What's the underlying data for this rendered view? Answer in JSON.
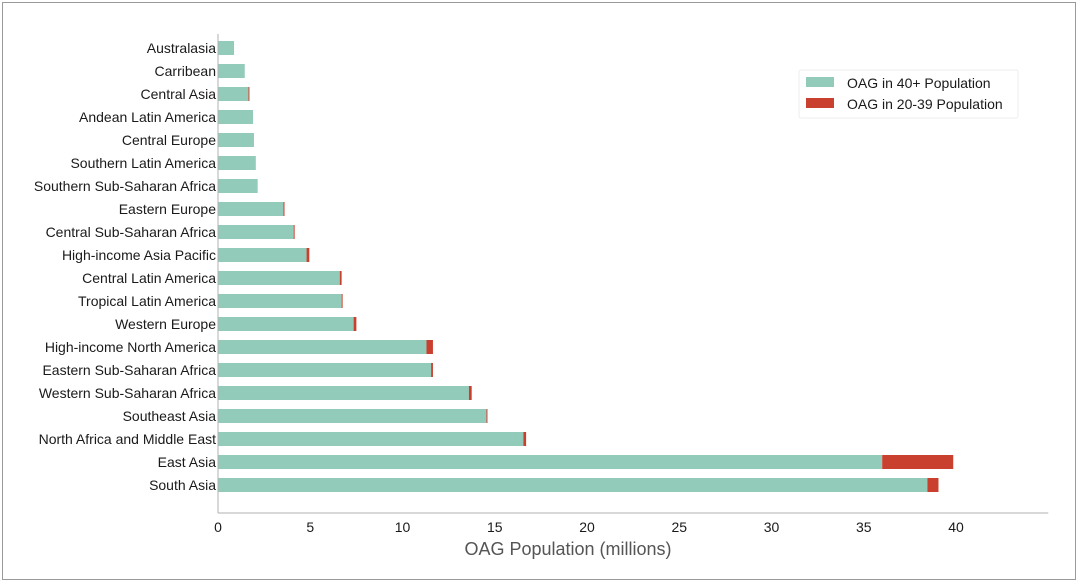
{
  "chart_data": {
    "type": "bar",
    "orientation": "horizontal",
    "stacked": true,
    "title": "",
    "xlabel": "OAG Population (millions)",
    "ylabel": "",
    "xlim": [
      0,
      45
    ],
    "xticks": [
      0,
      5,
      10,
      15,
      20,
      25,
      30,
      35,
      40
    ],
    "grid": false,
    "legend_position": "top-right",
    "categories": [
      "Australasia",
      "Carribean",
      "Central Asia",
      "Andean Latin America",
      "Central Europe",
      "Southern Latin America",
      "Southern Sub-Saharan Africa",
      "Eastern Europe",
      "Central Sub-Saharan Africa",
      "High-income Asia Pacific",
      "Central Latin America",
      "Tropical Latin America",
      "Western Europe",
      "High-income North America",
      "Eastern Sub-Saharan Africa",
      "Western Sub-Saharan Africa",
      "Southeast Asia",
      "North Africa and Middle East",
      "East Asia",
      "South Asia"
    ],
    "series": [
      {
        "name": "OAG in 40+ Population",
        "color": "#93cbba",
        "values": [
          0.87,
          1.45,
          1.65,
          1.9,
          1.95,
          2.05,
          2.15,
          3.55,
          4.1,
          4.8,
          6.6,
          6.7,
          7.35,
          11.3,
          11.55,
          13.6,
          14.55,
          16.55,
          36.0,
          38.45
        ]
      },
      {
        "name": "OAG in 20-39 Population",
        "color": "#c9402e",
        "values": [
          0.0,
          0.0,
          0.05,
          0.0,
          0.0,
          0.0,
          0.0,
          0.05,
          0.05,
          0.15,
          0.1,
          0.05,
          0.15,
          0.35,
          0.1,
          0.15,
          0.05,
          0.15,
          3.85,
          0.6
        ]
      }
    ]
  }
}
